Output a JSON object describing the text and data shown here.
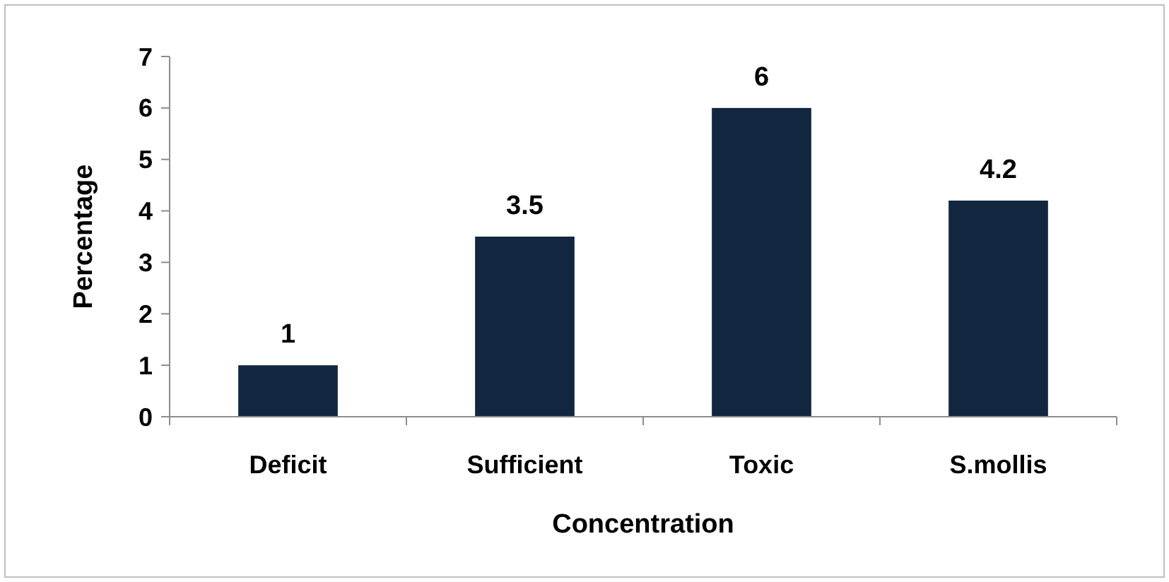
{
  "chart_data": {
    "type": "bar",
    "xlabel": "Concentration",
    "ylabel": "Percentage",
    "categories": [
      "Deficit",
      "Sufficient",
      "Toxic",
      "S.mollis"
    ],
    "values": [
      1,
      3.5,
      6,
      4.2
    ],
    "color": "#12273f",
    "ylim": [
      0,
      7
    ],
    "yticks": [
      0,
      1,
      2,
      3,
      4,
      5,
      6,
      7
    ],
    "grid": false,
    "data_labels": true
  }
}
